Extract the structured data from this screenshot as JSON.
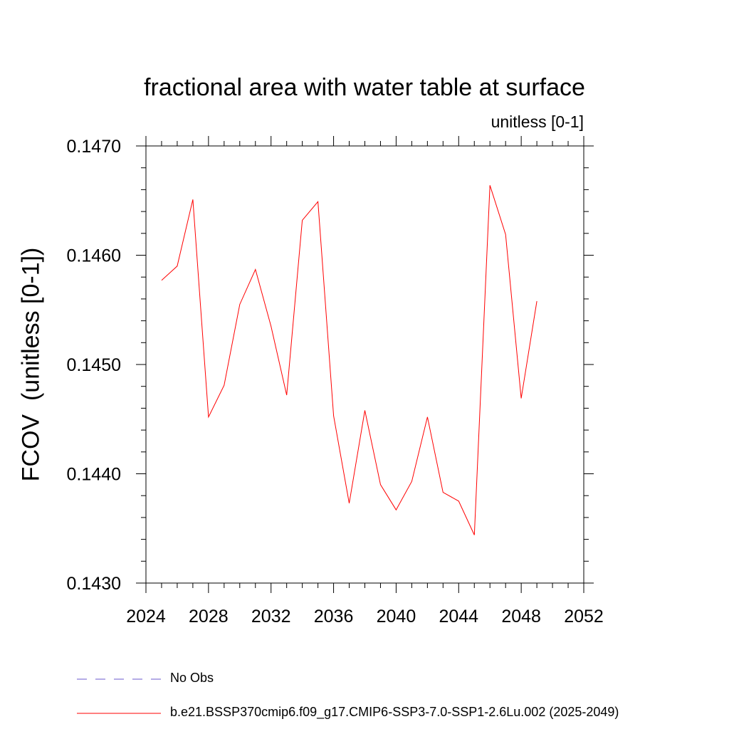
{
  "chart_data": {
    "type": "line",
    "title": "fractional area with water table at surface",
    "subtitle": "unitless [0-1]",
    "xlabel": "",
    "ylabel": "FCOV  (unitless [0-1])",
    "xlim": [
      2024,
      2052
    ],
    "ylim": [
      0.143,
      0.147
    ],
    "x_ticks": [
      "2024",
      "2028",
      "2032",
      "2036",
      "2040",
      "2044",
      "2048",
      "2052"
    ],
    "y_ticks": [
      "0.1430",
      "0.1440",
      "0.1450",
      "0.1460",
      "0.1470"
    ],
    "grid": false,
    "legend_position": "bottom",
    "legend": [
      {
        "label": "No Obs",
        "color": "#6a5acd",
        "style": "dashed"
      },
      {
        "label": "b.e21.BSSP370cmip6.f09_g17.CMIP6-SSP3-7.0-SSP1-2.6Lu.002 (2025-2049)",
        "color": "#ff0000",
        "style": "solid"
      }
    ],
    "series": [
      {
        "name": "b.e21.BSSP370cmip6.f09_g17.CMIP6-SSP3-7.0-SSP1-2.6Lu.002 (2025-2049)",
        "color": "#ff0000",
        "x": [
          2025,
          2026,
          2027,
          2028,
          2029,
          2030,
          2031,
          2032,
          2033,
          2034,
          2035,
          2036,
          2037,
          2038,
          2039,
          2040,
          2041,
          2042,
          2043,
          2044,
          2045,
          2046,
          2047,
          2048,
          2049
        ],
        "values": [
          0.14577,
          0.1459,
          0.14651,
          0.14452,
          0.14481,
          0.14555,
          0.14587,
          0.14535,
          0.14472,
          0.14632,
          0.14649,
          0.14453,
          0.14373,
          0.14458,
          0.1439,
          0.14367,
          0.14393,
          0.14452,
          0.14383,
          0.14375,
          0.14344,
          0.14664,
          0.14619,
          0.14469,
          0.14558
        ]
      }
    ]
  }
}
